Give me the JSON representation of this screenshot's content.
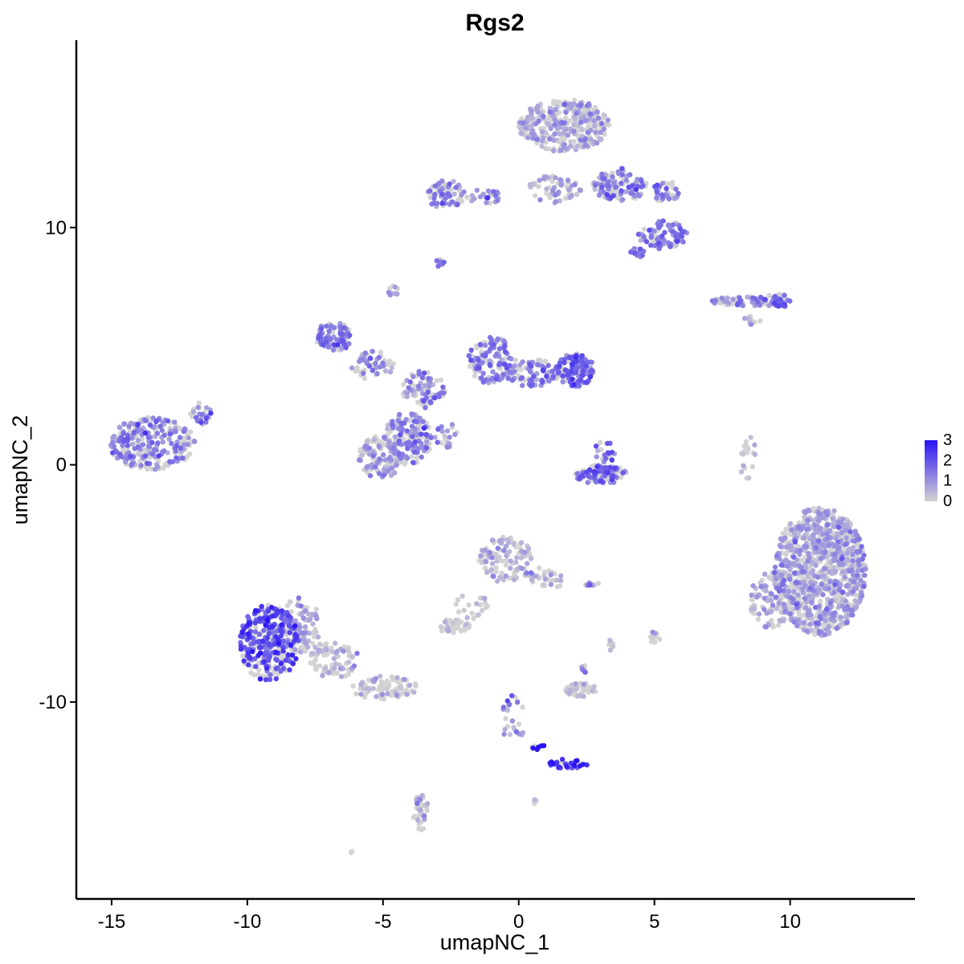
{
  "chart_data": {
    "type": "scatter",
    "title": "Rgs2",
    "xlabel": "umapNC_1",
    "ylabel": "umapNC_2",
    "xlim": [
      -16.3,
      14.6
    ],
    "ylim": [
      -18.3,
      17.9
    ],
    "xticks": [
      -15,
      -10,
      -5,
      0,
      5,
      10
    ],
    "xtick_labels": [
      "-15",
      "-10",
      "-5",
      "0",
      "5",
      "10"
    ],
    "yticks": [
      -10,
      0,
      10
    ],
    "ytick_labels": [
      "-10",
      "0",
      "10"
    ],
    "grid": false,
    "legend": {
      "position": "right",
      "type": "colorbar",
      "labels": [
        "3",
        "2",
        "1",
        "0"
      ],
      "values": [
        3,
        2,
        1,
        0
      ],
      "low_color": "#d3d3d3",
      "high_color": "#2a13f5"
    },
    "clusters": [
      {
        "cx": -13.5,
        "cy": 0.9,
        "rx": 1.6,
        "ry": 1.1,
        "n": 260,
        "expr": 1.2
      },
      {
        "cx": -11.7,
        "cy": 2.2,
        "rx": 0.4,
        "ry": 0.5,
        "n": 25,
        "expr": 1.3
      },
      {
        "cx": -6.8,
        "cy": 5.4,
        "rx": 0.7,
        "ry": 0.6,
        "n": 90,
        "expr": 1.3
      },
      {
        "cx": -5.4,
        "cy": 4.2,
        "rx": 0.8,
        "ry": 0.6,
        "n": 50,
        "expr": 0.8
      },
      {
        "cx": -5.1,
        "cy": 0.3,
        "rx": 0.8,
        "ry": 0.9,
        "n": 110,
        "expr": 0.7
      },
      {
        "cx": -4.1,
        "cy": 1.1,
        "rx": 0.9,
        "ry": 1.1,
        "n": 160,
        "expr": 1.2
      },
      {
        "cx": -3.5,
        "cy": 3.2,
        "rx": 0.8,
        "ry": 0.8,
        "n": 80,
        "expr": 1.0
      },
      {
        "cx": -1.0,
        "cy": 4.4,
        "rx": 0.9,
        "ry": 1.0,
        "n": 110,
        "expr": 1.3
      },
      {
        "cx": 0.5,
        "cy": 3.9,
        "rx": 1.0,
        "ry": 0.6,
        "n": 80,
        "expr": 1.2
      },
      {
        "cx": 2.1,
        "cy": 4.0,
        "rx": 0.7,
        "ry": 0.7,
        "n": 140,
        "expr": 1.7
      },
      {
        "cx": -2.6,
        "cy": 1.2,
        "rx": 0.5,
        "ry": 0.6,
        "n": 20,
        "expr": 0.8
      },
      {
        "cx": 3.0,
        "cy": -0.4,
        "rx": 1.0,
        "ry": 0.4,
        "n": 90,
        "expr": 1.7
      },
      {
        "cx": 3.2,
        "cy": 0.6,
        "rx": 0.4,
        "ry": 0.5,
        "n": 25,
        "expr": 1.5
      },
      {
        "cx": -2.7,
        "cy": 11.4,
        "rx": 0.7,
        "ry": 0.6,
        "n": 70,
        "expr": 1.2
      },
      {
        "cx": -1.3,
        "cy": 11.3,
        "rx": 0.7,
        "ry": 0.3,
        "n": 25,
        "expr": 0.8
      },
      {
        "cx": -2.9,
        "cy": 8.5,
        "rx": 0.15,
        "ry": 0.2,
        "n": 10,
        "expr": 1.8
      },
      {
        "cx": -4.6,
        "cy": 7.3,
        "rx": 0.2,
        "ry": 0.3,
        "n": 10,
        "expr": 1.0
      },
      {
        "cx": 1.7,
        "cy": 14.3,
        "rx": 1.7,
        "ry": 1.1,
        "n": 330,
        "expr": 0.6
      },
      {
        "cx": 1.3,
        "cy": 11.6,
        "rx": 1.0,
        "ry": 0.6,
        "n": 60,
        "expr": 0.7
      },
      {
        "cx": 3.7,
        "cy": 11.8,
        "rx": 1.0,
        "ry": 0.7,
        "n": 110,
        "expr": 1.1
      },
      {
        "cx": 5.4,
        "cy": 11.5,
        "rx": 0.5,
        "ry": 0.5,
        "n": 40,
        "expr": 1.2
      },
      {
        "cx": 5.3,
        "cy": 9.7,
        "rx": 0.9,
        "ry": 0.6,
        "n": 90,
        "expr": 1.3
      },
      {
        "cx": 4.4,
        "cy": 8.9,
        "rx": 0.3,
        "ry": 0.3,
        "n": 15,
        "expr": 1.7
      },
      {
        "cx": 8.4,
        "cy": 6.9,
        "rx": 1.4,
        "ry": 0.2,
        "n": 60,
        "expr": 1.1
      },
      {
        "cx": 9.5,
        "cy": 6.9,
        "rx": 0.5,
        "ry": 0.3,
        "n": 35,
        "expr": 1.7
      },
      {
        "cx": 8.6,
        "cy": 6.1,
        "rx": 0.3,
        "ry": 0.2,
        "n": 10,
        "expr": 0.7
      },
      {
        "cx": 8.5,
        "cy": 0.3,
        "rx": 0.4,
        "ry": 0.9,
        "n": 20,
        "expr": 0.3
      },
      {
        "cx": 11.1,
        "cy": -4.5,
        "rx": 1.7,
        "ry": 2.7,
        "n": 950,
        "expr": 0.7
      },
      {
        "cx": 9.3,
        "cy": -5.7,
        "rx": 0.8,
        "ry": 1.2,
        "n": 90,
        "expr": 0.6
      },
      {
        "cx": -0.5,
        "cy": -4.0,
        "rx": 1.0,
        "ry": 1.0,
        "n": 110,
        "expr": 0.4
      },
      {
        "cx": 1.0,
        "cy": -4.8,
        "rx": 0.7,
        "ry": 0.5,
        "n": 30,
        "expr": 0.3
      },
      {
        "cx": -1.8,
        "cy": -6.0,
        "rx": 0.7,
        "ry": 0.6,
        "n": 20,
        "expr": 0.1
      },
      {
        "cx": -2.4,
        "cy": -6.8,
        "rx": 0.6,
        "ry": 0.3,
        "n": 40,
        "expr": 0.05
      },
      {
        "cx": 2.7,
        "cy": -5.0,
        "rx": 0.3,
        "ry": 0.1,
        "n": 8,
        "expr": 1.0
      },
      {
        "cx": 5.0,
        "cy": -7.3,
        "rx": 0.2,
        "ry": 0.3,
        "n": 10,
        "expr": 0.2
      },
      {
        "cx": 3.4,
        "cy": -7.6,
        "rx": 0.1,
        "ry": 0.4,
        "n": 6,
        "expr": 0.2
      },
      {
        "cx": -9.2,
        "cy": -7.5,
        "rx": 1.1,
        "ry": 1.6,
        "n": 330,
        "expr": 2.0
      },
      {
        "cx": -8.1,
        "cy": -6.8,
        "rx": 0.8,
        "ry": 1.2,
        "n": 90,
        "expr": 0.6
      },
      {
        "cx": -6.8,
        "cy": -8.2,
        "rx": 0.9,
        "ry": 0.8,
        "n": 80,
        "expr": 0.2
      },
      {
        "cx": -5.0,
        "cy": -9.4,
        "rx": 1.3,
        "ry": 0.5,
        "n": 80,
        "expr": 0.2
      },
      {
        "cx": 2.3,
        "cy": -9.5,
        "rx": 0.6,
        "ry": 0.3,
        "n": 50,
        "expr": 0.1
      },
      {
        "cx": 2.4,
        "cy": -8.6,
        "rx": 0.1,
        "ry": 0.2,
        "n": 6,
        "expr": 0.8
      },
      {
        "cx": -0.2,
        "cy": -10.7,
        "rx": 0.5,
        "ry": 1.0,
        "n": 25,
        "expr": 0.9
      },
      {
        "cx": 1.8,
        "cy": -12.6,
        "rx": 0.8,
        "ry": 0.2,
        "n": 35,
        "expr": 2.6
      },
      {
        "cx": 0.7,
        "cy": -11.9,
        "rx": 0.3,
        "ry": 0.1,
        "n": 8,
        "expr": 3.0
      },
      {
        "cx": -3.6,
        "cy": -14.7,
        "rx": 0.3,
        "ry": 0.8,
        "n": 40,
        "expr": 0.4
      },
      {
        "cx": 0.6,
        "cy": -14.2,
        "rx": 0.1,
        "ry": 0.1,
        "n": 4,
        "expr": 1.0
      },
      {
        "cx": -6.2,
        "cy": -16.3,
        "rx": 0.1,
        "ry": 0.1,
        "n": 3,
        "expr": 0.2
      }
    ]
  }
}
